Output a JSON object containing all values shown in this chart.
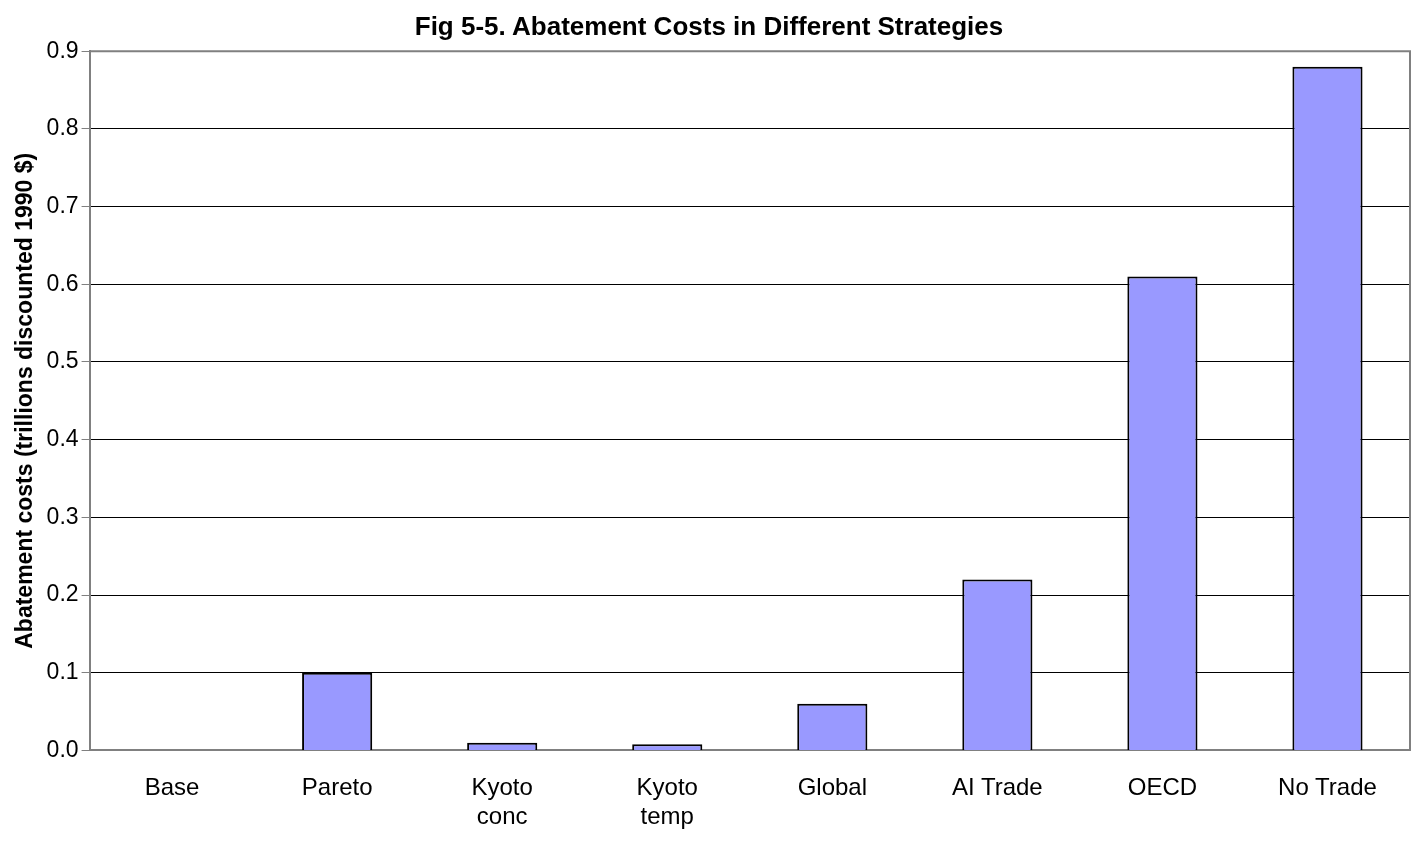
{
  "chart_data": {
    "type": "bar",
    "title": "Fig 5-5. Abatement Costs in Different Strategies",
    "ylabel": "Abatement costs (trillions discounted 1990 $)",
    "categories": [
      "Base",
      "Pareto",
      "Kyoto\nconc",
      "Kyoto\ntemp",
      "Global",
      "AI Trade",
      "OECD",
      "No Trade"
    ],
    "values": [
      0,
      0.1,
      0.01,
      0.008,
      0.06,
      0.22,
      0.61,
      0.88
    ],
    "color": "#9999ff",
    "ylim": [
      0,
      0.9
    ],
    "yticks": [
      {
        "value": 0,
        "label": "0.0"
      },
      0.1,
      0.2,
      0.3,
      0.4,
      0.5,
      0.6,
      0.7,
      0.8,
      0.9
    ],
    "grid": "y",
    "legend": false
  }
}
